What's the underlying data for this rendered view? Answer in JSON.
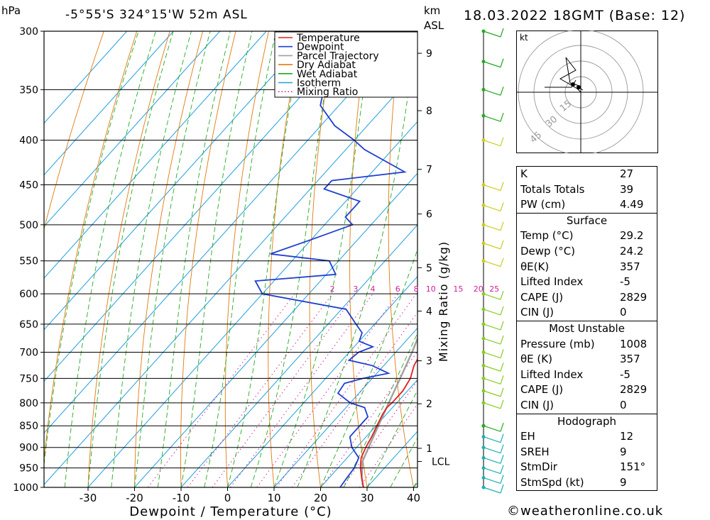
{
  "header": {
    "unit_left": "hPa",
    "location": "-5°55'S 324°15'W 52m ASL",
    "unit_right_1": "km",
    "unit_right_2": "ASL",
    "datetime": "18.03.2022 18GMT (Base: 12)"
  },
  "chart_data": {
    "type": "skew-t",
    "xlabel": "Dewpoint / Temperature (°C)",
    "right_label": "Mixing Ratio (g/kg)",
    "pressure_levels": [
      300,
      350,
      400,
      450,
      500,
      550,
      600,
      650,
      700,
      750,
      800,
      850,
      900,
      950,
      1000
    ],
    "temperature_ticks": [
      -30,
      -20,
      -10,
      0,
      10,
      20,
      30,
      40
    ],
    "km_ticks": [
      {
        "label": "1",
        "p": 902
      },
      {
        "label": "2",
        "p": 802
      },
      {
        "label": "3",
        "p": 716
      },
      {
        "label": "4",
        "p": 628
      },
      {
        "label": "5",
        "p": 560
      },
      {
        "label": "6",
        "p": 486
      },
      {
        "label": "7",
        "p": 432
      },
      {
        "label": "8",
        "p": 370
      },
      {
        "label": "9",
        "p": 318
      }
    ],
    "lcl": {
      "label": "LCL",
      "p": 934
    },
    "mixing_ratio_labels": [
      "2",
      "3",
      "4",
      "6",
      "8",
      "10",
      "15",
      "20",
      "25"
    ],
    "legend": [
      "Temperature",
      "Dewpoint",
      "Parcel Trajectory",
      "Dry Adiabat",
      "Wet Adiabat",
      "Isotherm",
      "Mixing Ratio"
    ],
    "colors": {
      "temperature": "#e02020",
      "dewpoint": "#1e3fd0",
      "parcel": "#a0a0a0",
      "dry_adiabat": "#e07a10",
      "wet_adiabat": "#22aa22",
      "isotherm": "#1f9fe0",
      "mixing_ratio": "#d0209a"
    },
    "temperature": [
      [
        1000,
        29.2
      ],
      [
        975,
        27.0
      ],
      [
        950,
        24.8
      ],
      [
        925,
        23.0
      ],
      [
        900,
        22.0
      ],
      [
        875,
        21.2
      ],
      [
        850,
        20.2
      ],
      [
        825,
        19.2
      ],
      [
        810,
        18.8
      ],
      [
        800,
        19.0
      ],
      [
        775,
        19.0
      ],
      [
        750,
        18.2
      ],
      [
        725,
        16.5
      ],
      [
        700,
        15.5
      ],
      [
        675,
        14.5
      ],
      [
        650,
        13.5
      ],
      [
        625,
        12.5
      ],
      [
        600,
        11.0
      ],
      [
        575,
        9.5
      ],
      [
        550,
        8.0
      ],
      [
        525,
        6.0
      ],
      [
        500,
        4.0
      ],
      [
        475,
        1.5
      ],
      [
        450,
        -1.0
      ],
      [
        425,
        -4.5
      ],
      [
        400,
        -8.5
      ],
      [
        375,
        -12.0
      ],
      [
        360,
        -14.5
      ],
      [
        340,
        -19.5
      ],
      [
        320,
        -25.5
      ],
      [
        300,
        -31.5
      ]
    ],
    "dewpoint": [
      [
        1000,
        24.2
      ],
      [
        975,
        23.8
      ],
      [
        950,
        23.5
      ],
      [
        925,
        22.5
      ],
      [
        900,
        19.0
      ],
      [
        875,
        16.5
      ],
      [
        850,
        16.5
      ],
      [
        830,
        16.5
      ],
      [
        810,
        14.0
      ],
      [
        800,
        10.0
      ],
      [
        780,
        5.5
      ],
      [
        760,
        5.0
      ],
      [
        750,
        8.0
      ],
      [
        740,
        12.5
      ],
      [
        725,
        7.5
      ],
      [
        715,
        1.5
      ],
      [
        700,
        2.0
      ],
      [
        690,
        4.0
      ],
      [
        680,
        0.0
      ],
      [
        665,
        -1.0
      ],
      [
        650,
        -4.0
      ],
      [
        625,
        -9.0
      ],
      [
        600,
        -30.0
      ],
      [
        580,
        -34.0
      ],
      [
        570,
        -18.0
      ],
      [
        550,
        -22.0
      ],
      [
        540,
        -36.0
      ],
      [
        520,
        -30.0
      ],
      [
        500,
        -24.0
      ],
      [
        490,
        -27.0
      ],
      [
        470,
        -27.0
      ],
      [
        455,
        -37.0
      ],
      [
        445,
        -37.0
      ],
      [
        435,
        -23.0
      ],
      [
        410,
        -36.0
      ],
      [
        400,
        -40.0
      ],
      [
        385,
        -47.0
      ],
      [
        365,
        -54.0
      ],
      [
        340,
        -58.0
      ],
      [
        320,
        -61.0
      ],
      [
        310,
        -61.0
      ],
      [
        300,
        -62.0
      ]
    ],
    "parcel": [
      [
        1000,
        29.2
      ],
      [
        975,
        27.0
      ],
      [
        950,
        25.2
      ],
      [
        934,
        24.0
      ],
      [
        900,
        22.6
      ],
      [
        850,
        20.5
      ],
      [
        800,
        18.3
      ],
      [
        750,
        16.0
      ],
      [
        700,
        13.5
      ],
      [
        650,
        10.5
      ],
      [
        600,
        7.0
      ],
      [
        550,
        3.0
      ],
      [
        500,
        -1.5
      ],
      [
        450,
        -7.0
      ],
      [
        400,
        -13.5
      ],
      [
        370,
        -17.5
      ]
    ]
  },
  "hodograph": {
    "unit": "kt",
    "rings": [
      "15",
      "30",
      "45"
    ]
  },
  "wind_barbs": [
    300,
    325,
    350,
    375,
    400,
    450,
    475,
    500,
    525,
    550,
    600,
    625,
    650,
    675,
    700,
    725,
    750,
    775,
    800,
    850,
    875,
    900,
    925,
    950,
    975,
    1000
  ],
  "indices": {
    "rows": [
      {
        "label": "K",
        "value": "27"
      },
      {
        "label": "Totals Totals",
        "value": "39"
      },
      {
        "label": "PW (cm)",
        "value": "4.49"
      }
    ]
  },
  "surface": {
    "title": "Surface",
    "rows": [
      {
        "label": "Temp (°C)",
        "value": "29.2"
      },
      {
        "label": "Dewp (°C)",
        "value": "24.2"
      },
      {
        "label": "θE(K)",
        "value": "357"
      },
      {
        "label": "Lifted Index",
        "value": "-5"
      },
      {
        "label": "CAPE (J)",
        "value": "2829"
      },
      {
        "label": "CIN (J)",
        "value": "0"
      }
    ]
  },
  "most_unstable": {
    "title": "Most Unstable",
    "rows": [
      {
        "label": "Pressure (mb)",
        "value": "1008"
      },
      {
        "label": "θE (K)",
        "value": "357"
      },
      {
        "label": "Lifted Index",
        "value": "-5"
      },
      {
        "label": "CAPE (J)",
        "value": "2829"
      },
      {
        "label": "CIN (J)",
        "value": "0"
      }
    ]
  },
  "hodograph_table": {
    "title": "Hodograph",
    "rows": [
      {
        "label": "EH",
        "value": "12"
      },
      {
        "label": "SREH",
        "value": "9"
      },
      {
        "label": "StmDir",
        "value": "151°"
      },
      {
        "label": "StmSpd (kt)",
        "value": "9"
      }
    ]
  },
  "footer": {
    "copyright_symbol": "©",
    "site": "weatheronline.co.uk"
  }
}
